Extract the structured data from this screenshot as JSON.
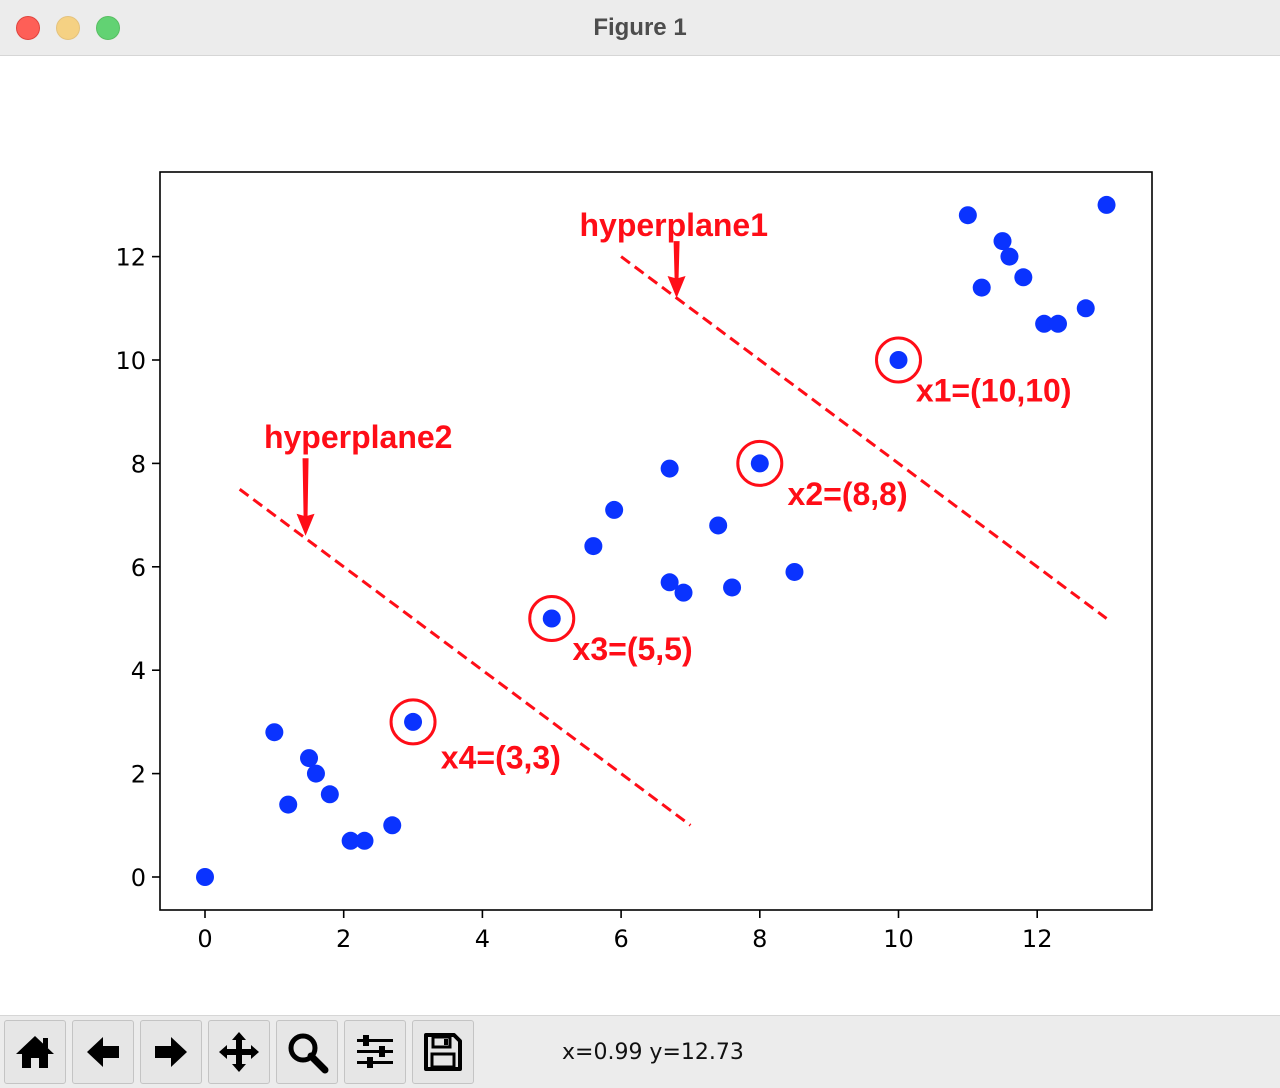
{
  "window": {
    "title": "Figure 1"
  },
  "toolbar": {
    "buttons": [
      {
        "name": "home-button",
        "icon": "home-icon"
      },
      {
        "name": "back-button",
        "icon": "arrow-left-icon"
      },
      {
        "name": "forward-button",
        "icon": "arrow-right-icon"
      },
      {
        "name": "pan-button",
        "icon": "move-icon"
      },
      {
        "name": "zoom-button",
        "icon": "magnifier-icon"
      },
      {
        "name": "configure-subplots-button",
        "icon": "sliders-icon"
      },
      {
        "name": "save-button",
        "icon": "floppy-disk-icon"
      }
    ],
    "coords": "x=0.99 y=12.73"
  },
  "colors": {
    "points": "#0a33ff",
    "annotation": "#ff0d17",
    "axes": "#000000"
  },
  "chart_data": {
    "type": "scatter",
    "xlim": [
      -0.65,
      13.65
    ],
    "ylim": [
      -0.65,
      13.65
    ],
    "xticks": [
      0,
      2,
      4,
      6,
      8,
      10,
      12
    ],
    "yticks": [
      0,
      2,
      4,
      6,
      8,
      10,
      12
    ],
    "grid": false,
    "points": [
      [
        0,
        0
      ],
      [
        1,
        2.8
      ],
      [
        1.2,
        1.4
      ],
      [
        1.5,
        2.3
      ],
      [
        1.6,
        2.0
      ],
      [
        1.8,
        1.6
      ],
      [
        2.1,
        0.7
      ],
      [
        2.3,
        0.7
      ],
      [
        2.7,
        1.0
      ],
      [
        3,
        3
      ],
      [
        5,
        5
      ],
      [
        5.6,
        6.4
      ],
      [
        5.9,
        7.1
      ],
      [
        6.7,
        7.9
      ],
      [
        6.7,
        5.7
      ],
      [
        6.9,
        5.5
      ],
      [
        7.4,
        6.8
      ],
      [
        7.6,
        5.6
      ],
      [
        8,
        8
      ],
      [
        8.5,
        5.9
      ],
      [
        10,
        10
      ],
      [
        11,
        12.8
      ],
      [
        11.2,
        11.4
      ],
      [
        11.5,
        12.3
      ],
      [
        11.6,
        12.0
      ],
      [
        11.8,
        11.6
      ],
      [
        12.1,
        10.7
      ],
      [
        12.3,
        10.7
      ],
      [
        12.7,
        11.0
      ],
      [
        13,
        13
      ]
    ],
    "circled": [
      [
        10,
        10
      ],
      [
        8,
        8
      ],
      [
        5,
        5
      ],
      [
        3,
        3
      ]
    ],
    "lines": [
      {
        "label": "hyperplane1",
        "from": [
          6,
          12
        ],
        "to": [
          13,
          5
        ]
      },
      {
        "label": "hyperplane2",
        "from": [
          0.5,
          7.5
        ],
        "to": [
          7,
          1
        ]
      }
    ],
    "arrows": [
      {
        "label": "hyperplane1",
        "tail": [
          6.8,
          12.3
        ],
        "head": [
          6.8,
          11.2
        ],
        "text_at": [
          5.4,
          12.4
        ]
      },
      {
        "label": "hyperplane2",
        "tail": [
          1.45,
          8.1
        ],
        "head": [
          1.45,
          6.6
        ],
        "text_at": [
          0.85,
          8.3
        ]
      }
    ],
    "annotations": [
      {
        "text": "x1=(10,10)",
        "at": [
          10.25,
          9.2
        ]
      },
      {
        "text": "x2=(8,8)",
        "at": [
          8.4,
          7.2
        ]
      },
      {
        "text": "x3=(5,5)",
        "at": [
          5.3,
          4.2
        ]
      },
      {
        "text": "x4=(3,3)",
        "at": [
          3.4,
          2.1
        ]
      }
    ]
  }
}
